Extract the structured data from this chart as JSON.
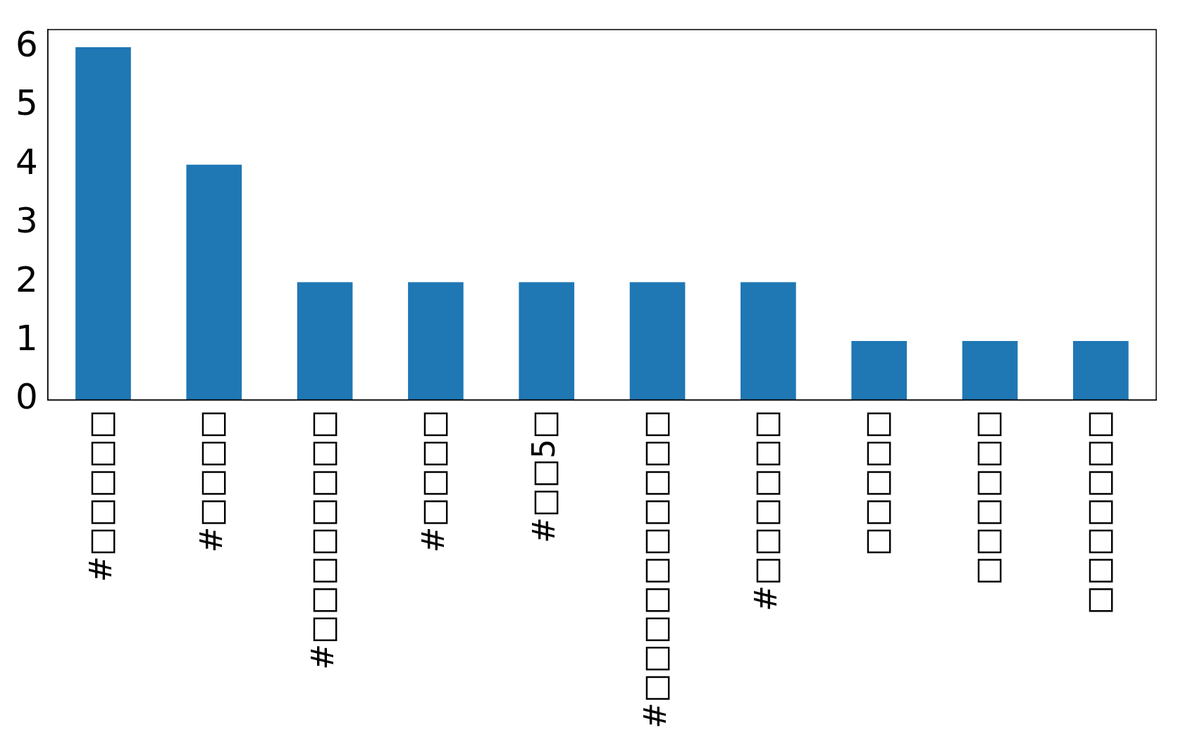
{
  "chart_data": {
    "type": "bar",
    "categories": [
      "#□□□□□",
      "#□□□□",
      "#□□□□□□□□",
      "#□□□□",
      "#□□5□",
      "#□□□□□□□□□□",
      "#□□□□□□",
      "□□□□□",
      "□□□□□□",
      "□□□□□□□"
    ],
    "values": [
      6,
      4,
      2,
      2,
      2,
      2,
      2,
      1,
      1,
      1
    ],
    "color": "#1f77b4",
    "ylim": [
      0,
      6.3
    ],
    "yticks": [
      0,
      1,
      2,
      3,
      4,
      5,
      6
    ],
    "grid": false,
    "legend": false
  }
}
